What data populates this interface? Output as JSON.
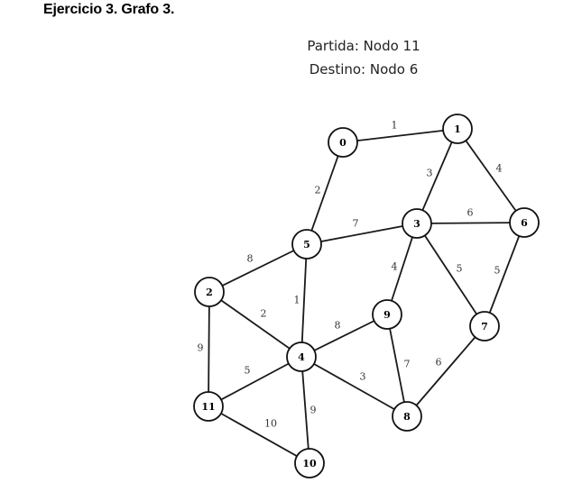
{
  "header": {
    "title": "Ejercicio 3. Grafo 3.",
    "start_label": "Partida: Nodo 11",
    "end_label": "Destino: Nodo 6"
  },
  "graph": {
    "nodes": [
      {
        "id": "0",
        "label": "0"
      },
      {
        "id": "1",
        "label": "1"
      },
      {
        "id": "2",
        "label": "2"
      },
      {
        "id": "3",
        "label": "3"
      },
      {
        "id": "4",
        "label": "4"
      },
      {
        "id": "5",
        "label": "5"
      },
      {
        "id": "6",
        "label": "6"
      },
      {
        "id": "7",
        "label": "7"
      },
      {
        "id": "8",
        "label": "8"
      },
      {
        "id": "9",
        "label": "9"
      },
      {
        "id": "10",
        "label": "10"
      },
      {
        "id": "11",
        "label": "11"
      }
    ],
    "edges": [
      {
        "from": "0",
        "to": "1",
        "weight": "1"
      },
      {
        "from": "0",
        "to": "5",
        "weight": "2"
      },
      {
        "from": "1",
        "to": "3",
        "weight": "3"
      },
      {
        "from": "1",
        "to": "6",
        "weight": "4"
      },
      {
        "from": "5",
        "to": "3",
        "weight": "7"
      },
      {
        "from": "3",
        "to": "6",
        "weight": "6"
      },
      {
        "from": "3",
        "to": "9",
        "weight": "4"
      },
      {
        "from": "3",
        "to": "7",
        "weight": "5"
      },
      {
        "from": "6",
        "to": "7",
        "weight": "5"
      },
      {
        "from": "5",
        "to": "2",
        "weight": "8"
      },
      {
        "from": "5",
        "to": "4",
        "weight": "1"
      },
      {
        "from": "2",
        "to": "4",
        "weight": "2"
      },
      {
        "from": "2",
        "to": "11",
        "weight": "9"
      },
      {
        "from": "4",
        "to": "9",
        "weight": "8"
      },
      {
        "from": "4",
        "to": "11",
        "weight": "5"
      },
      {
        "from": "4",
        "to": "8",
        "weight": "3"
      },
      {
        "from": "4",
        "to": "10",
        "weight": "9"
      },
      {
        "from": "9",
        "to": "8",
        "weight": "7"
      },
      {
        "from": "7",
        "to": "8",
        "weight": "6"
      },
      {
        "from": "11",
        "to": "10",
        "weight": "10"
      }
    ]
  }
}
